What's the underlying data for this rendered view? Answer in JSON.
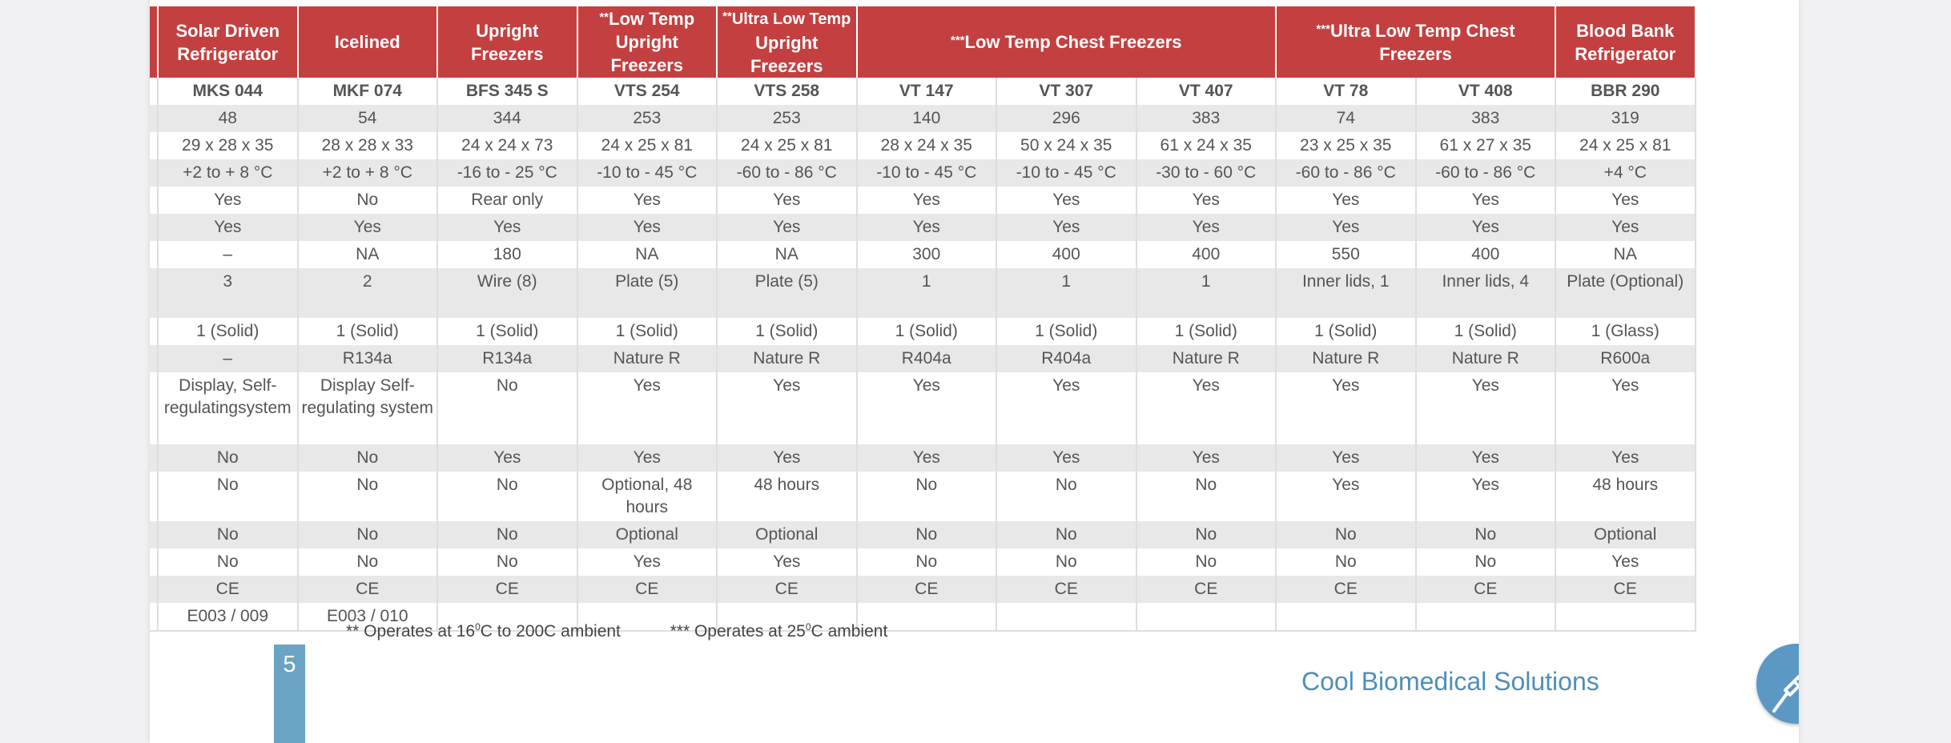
{
  "headers": [
    {
      "label": "Solar Driven Refrigerator",
      "span": 1
    },
    {
      "label": "Icelined",
      "span": 1
    },
    {
      "label": "Upright Freezers",
      "span": 1
    },
    {
      "prefix": "**",
      "label": "Low Temp Upright Freezers",
      "span": 1
    },
    {
      "prefix": "**",
      "label_small": "Ultra Low Temp",
      "label": "Upright Freezers",
      "span": 1
    },
    {
      "prefix": "***",
      "label": "Low Temp Chest Freezers",
      "span": 3
    },
    {
      "prefix": "***",
      "label": "Ultra Low Temp Chest Freezers",
      "span": 2
    },
    {
      "label": "Blood Bank Refrigerator",
      "span": 1
    }
  ],
  "rows": [
    [
      "MKS 044",
      "MKF 074",
      "BFS 345 S",
      "VTS 254",
      "VTS 258",
      "VT 147",
      "VT 307",
      "VT 407",
      "VT 78",
      "VT 408",
      "BBR 290"
    ],
    [
      "48",
      "54",
      "344",
      "253",
      "253",
      "140",
      "296",
      "383",
      "74",
      "383",
      "319"
    ],
    [
      "29 x 28 x 35",
      "28 x 28 x 33",
      "24 x 24 x 73",
      "24 x 25 x 81",
      "24 x 25 x 81",
      "28 x 24 x 35",
      "50 x 24 x 35",
      "61 x 24 x 35",
      "23 x 25 x 35",
      "61 x 27 x 35",
      "24 x 25 x 81"
    ],
    [
      "+2 to + 8 °C",
      "+2 to + 8 °C",
      "-16 to - 25 °C",
      "-10 to - 45 °C",
      "-60 to - 86 °C",
      "-10 to - 45 °C",
      "-10 to - 45 °C",
      "-30 to - 60 °C",
      "-60 to - 86 °C",
      "-60 to - 86 °C",
      "+4 °C"
    ],
    [
      "Yes",
      "No",
      "Rear only",
      "Yes",
      "Yes",
      "Yes",
      "Yes",
      "Yes",
      "Yes",
      "Yes",
      "Yes"
    ],
    [
      "Yes",
      "Yes",
      "Yes",
      "Yes",
      "Yes",
      "Yes",
      "Yes",
      "Yes",
      "Yes",
      "Yes",
      "Yes"
    ],
    [
      "–",
      "NA",
      "180",
      "NA",
      "NA",
      "300",
      "400",
      "400",
      "550",
      "400",
      "NA"
    ],
    [
      "3",
      "2",
      "Wire (8)",
      "Plate (5)",
      "Plate (5)",
      "1",
      "1",
      "1",
      "Inner lids, 1",
      "Inner lids, 4",
      "Plate (Optional)"
    ],
    [
      "1 (Solid)",
      "1 (Solid)",
      "1 (Solid)",
      "1 (Solid)",
      "1 (Solid)",
      "1 (Solid)",
      "1 (Solid)",
      "1 (Solid)",
      "1 (Solid)",
      "1 (Solid)",
      "1 (Glass)"
    ],
    [
      "–",
      "R134a",
      "R134a",
      "Nature R",
      "Nature R",
      "R404a",
      "R404a",
      "Nature R",
      "Nature R",
      "Nature R",
      "R600a"
    ],
    [
      "Display, Self-regulatingsystem",
      "Display Self-regulating system",
      "No",
      "Yes",
      "Yes",
      "Yes",
      "Yes",
      "Yes",
      "Yes",
      "Yes",
      "Yes"
    ],
    [
      "No",
      "No",
      "Yes",
      "Yes",
      "Yes",
      "Yes",
      "Yes",
      "Yes",
      "Yes",
      "Yes",
      "Yes"
    ],
    [
      "No",
      "No",
      "No",
      "Optional, 48 hours",
      "48 hours",
      "No",
      "No",
      "No",
      "Yes",
      "Yes",
      "48 hours"
    ],
    [
      "No",
      "No",
      "No",
      "Optional",
      "Optional",
      "No",
      "No",
      "No",
      "No",
      "No",
      "Optional"
    ],
    [
      "No",
      "No",
      "No",
      "Yes",
      "Yes",
      "No",
      "No",
      "No",
      "No",
      "No",
      "Yes"
    ],
    [
      "CE",
      "CE",
      "CE",
      "CE",
      "CE",
      "CE",
      "CE",
      "CE",
      "CE",
      "CE",
      "CE"
    ],
    [
      "E003 / 009",
      "E003 / 010",
      "",
      "",
      "",
      "",
      "",
      "",
      "",
      "",
      ""
    ]
  ],
  "footnotes": {
    "note1": {
      "prefix": "** Operates at 16",
      "sup": "0",
      "suffix": "C to 200C ambient"
    },
    "note2": {
      "prefix": "*** Operates at 25",
      "sup": "0",
      "suffix": "C ambient"
    }
  },
  "page_number": "5",
  "brand": "Cool Biomedical Solutions",
  "logo_icon": "syringe-icon",
  "colors": {
    "header_red": "#c44040",
    "row_shade": "#e8e8e8",
    "brand_blue": "#4e8fb8",
    "page_tab": "#6ba3c4"
  }
}
